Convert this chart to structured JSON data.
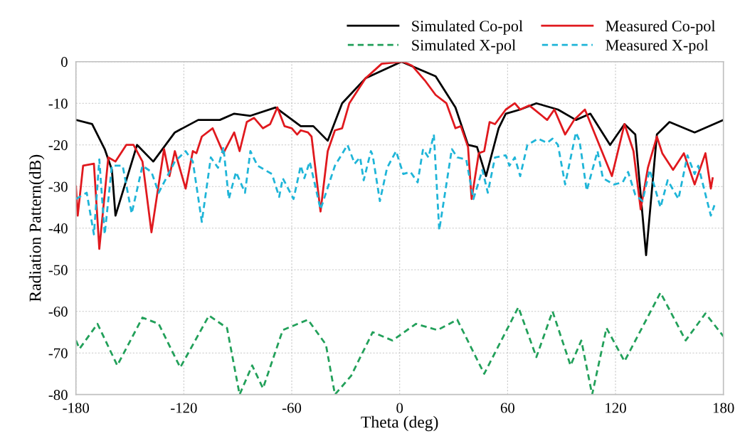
{
  "chart_data": {
    "type": "line",
    "xlabel": "Theta (deg)",
    "ylabel": "Radiation Pattern(dB)",
    "xlim": [
      -180,
      180
    ],
    "xticks": [
      -180,
      -120,
      -60,
      0,
      60,
      120,
      180
    ],
    "ylim": [
      -80,
      0
    ],
    "yticks": [
      -80,
      -70,
      -60,
      -50,
      -40,
      -30,
      -20,
      -10,
      0
    ],
    "grid": true,
    "legend": "top right",
    "marker": "none",
    "series": [
      {
        "name": "Simulated Co-pol",
        "color": "#000000",
        "line_style": "solid",
        "x": [
          -180,
          -171,
          -164,
          -160,
          -158,
          -146,
          -137,
          -125,
          -112,
          -100,
          -92,
          -83,
          -69,
          -55,
          -48,
          -40,
          -32,
          -19,
          1,
          20,
          31,
          38,
          43,
          48,
          55,
          59,
          67,
          76,
          88,
          98,
          106,
          117,
          125,
          131,
          137,
          143,
          150,
          164,
          180
        ],
        "values": [
          -14,
          -15,
          -21,
          -26,
          -37,
          -20,
          -24,
          -17,
          -14,
          -14,
          -12.5,
          -13,
          -11,
          -15.5,
          -15.5,
          -19,
          -10,
          -4,
          0,
          -3.5,
          -11,
          -20,
          -20.5,
          -27.5,
          -16,
          -12.5,
          -11.5,
          -10,
          -11.5,
          -14,
          -12.5,
          -20,
          -15,
          -17.5,
          -46.5,
          -17.5,
          -14.5,
          -17,
          -14
        ]
      },
      {
        "name": "Measured Co-pol",
        "color": "#e0191e",
        "line_style": "solid",
        "x": [
          -180,
          -179,
          -176,
          -170,
          -167,
          -162,
          -158,
          -152,
          -148,
          -143,
          -138,
          -131,
          -128,
          -125,
          -119,
          -115,
          -113,
          -110,
          -104,
          -98,
          -92,
          -89,
          -85,
          -81,
          -76,
          -72,
          -68,
          -64,
          -60,
          -57,
          -55,
          -51,
          -49,
          -44,
          -40,
          -36,
          -32,
          -28,
          -19,
          -10,
          2,
          7,
          14,
          20,
          26,
          31,
          34,
          38,
          40,
          44,
          47,
          50,
          53,
          59,
          64,
          67,
          72,
          82,
          86,
          92,
          97,
          103,
          118,
          125,
          130,
          134,
          138,
          143,
          146,
          152,
          158,
          164,
          170,
          173,
          174
        ],
        "values": [
          -30,
          -37,
          -25,
          -24.5,
          -45,
          -23,
          -24,
          -20,
          -20,
          -24,
          -41,
          -21,
          -27.5,
          -21.5,
          -30.5,
          -21.5,
          -22,
          -18,
          -16,
          -22,
          -17,
          -21.5,
          -14.5,
          -13.5,
          -16,
          -15,
          -11,
          -15.5,
          -16,
          -17.5,
          -16.5,
          -17,
          -18,
          -36,
          -21.5,
          -16.5,
          -16,
          -10,
          -4,
          -0.5,
          0,
          -1,
          -4.5,
          -8,
          -10,
          -16,
          -15.5,
          -20.5,
          -33,
          -22,
          -21.5,
          -14.5,
          -15,
          -11.5,
          -10,
          -11.5,
          -10.5,
          -14,
          -11.5,
          -17.5,
          -14,
          -11.5,
          -27.5,
          -15,
          -21.5,
          -35.5,
          -25.5,
          -18,
          -22,
          -26,
          -22,
          -29.5,
          -22,
          -30.5,
          -28
        ]
      },
      {
        "name": "Simulated X-pol",
        "color": "#22a05a",
        "line_style": "dashed",
        "x": [
          -180,
          -178,
          -168,
          -157,
          -143,
          -134,
          -122,
          -106,
          -96,
          -89,
          -82,
          -76,
          -65,
          -51,
          -41,
          -36,
          -27,
          -15,
          -4,
          9,
          21,
          32,
          47,
          66,
          76,
          85,
          95,
          101,
          107,
          115,
          125,
          145,
          159,
          170,
          180
        ],
        "values": [
          -67,
          -69,
          -63,
          -73,
          -61.5,
          -63,
          -73.5,
          -61,
          -64,
          -80,
          -73,
          -78.5,
          -64.5,
          -62,
          -68,
          -80,
          -75.5,
          -65,
          -67,
          -63,
          -64.5,
          -62,
          -75,
          -59,
          -71,
          -60,
          -73,
          -67,
          -80,
          -64,
          -72,
          -55.5,
          -67,
          -60.5,
          -66
        ]
      },
      {
        "name": "Measured X-pol",
        "color": "#1fb5d8",
        "line_style": "dashed",
        "x": [
          -180,
          -174,
          -170,
          -167,
          -164,
          -160,
          -154,
          -149,
          -143,
          -138,
          -134,
          -125,
          -119,
          -115,
          -110,
          -105,
          -101,
          -98,
          -95,
          -91,
          -86,
          -83,
          -79,
          -75,
          -71,
          -67,
          -65,
          -59,
          -55,
          -53,
          -50,
          -44,
          -36,
          -29,
          -25,
          -22,
          -20,
          -16,
          -15,
          -11,
          -7,
          -2,
          2,
          6,
          10,
          13,
          16,
          19,
          22,
          29,
          32,
          37,
          41,
          46,
          49,
          53,
          59,
          61,
          64,
          67,
          71,
          77,
          82,
          85,
          88,
          92,
          98,
          100,
          104,
          110,
          113,
          119,
          124,
          127,
          131,
          135,
          139,
          145,
          149,
          155,
          160,
          164,
          166,
          173,
          175
        ],
        "values": [
          -33,
          -31.5,
          -41.5,
          -23.5,
          -41.5,
          -25,
          -25,
          -36.5,
          -25,
          -26.5,
          -31.5,
          -24,
          -21.5,
          -24,
          -38.5,
          -23,
          -25.5,
          -20.5,
          -33,
          -26.5,
          -31.5,
          -21.5,
          -25,
          -26,
          -27,
          -32.5,
          -28,
          -33,
          -25,
          -28,
          -24,
          -35.5,
          -25,
          -20,
          -24.5,
          -23,
          -28.5,
          -21.5,
          -22.5,
          -33.5,
          -25.5,
          -21.5,
          -27,
          -26.5,
          -29,
          -21,
          -23,
          -17.5,
          -40.5,
          -21,
          -23,
          -23.5,
          -33,
          -26,
          -31.5,
          -23,
          -22.5,
          -25,
          -23,
          -27.5,
          -20,
          -18.5,
          -19.5,
          -18.5,
          -20,
          -29.5,
          -17,
          -19,
          -31,
          -21.5,
          -28,
          -29.5,
          -29,
          -26.5,
          -32,
          -33.5,
          -26,
          -35,
          -28.5,
          -33,
          -22.5,
          -27,
          -25,
          -37,
          -34.5
        ]
      }
    ]
  }
}
